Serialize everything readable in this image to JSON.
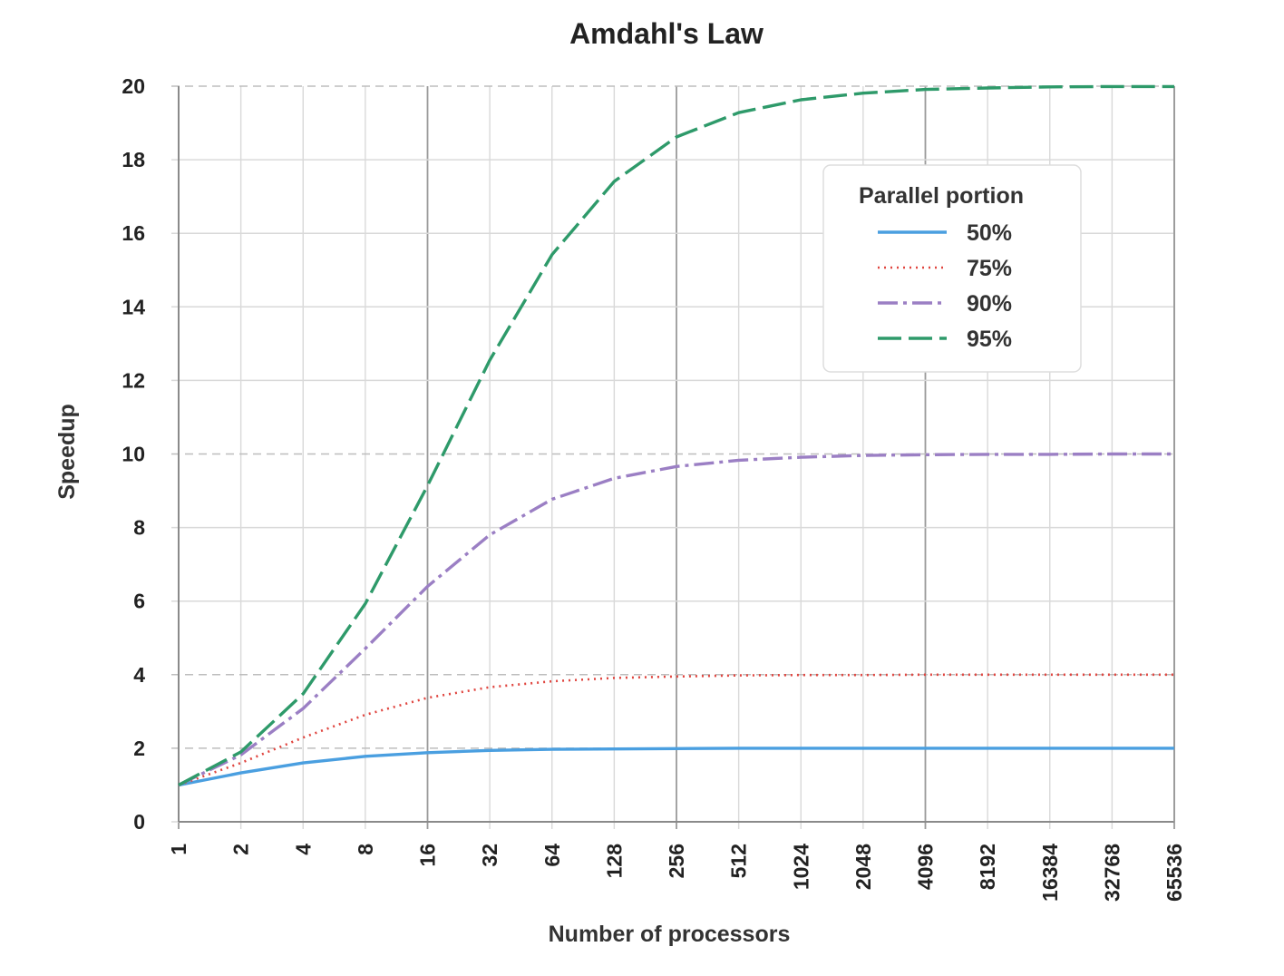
{
  "chart_data": {
    "type": "line",
    "title": "Amdahl's Law",
    "xlabel": "Number of processors",
    "ylabel": "Speedup",
    "x_scale": "log2",
    "x": [
      1,
      2,
      4,
      8,
      16,
      32,
      64,
      128,
      256,
      512,
      1024,
      2048,
      4096,
      8192,
      16384,
      32768,
      65536
    ],
    "x_tick_labels": [
      "1",
      "2",
      "4",
      "8",
      "16",
      "32",
      "64",
      "128",
      "256",
      "512",
      "1024",
      "2048",
      "4096",
      "8192",
      "16384",
      "32768",
      "65536"
    ],
    "ylim": [
      0,
      20
    ],
    "y_ticks": [
      0,
      2,
      4,
      6,
      8,
      10,
      12,
      14,
      16,
      18,
      20
    ],
    "grid": true,
    "legend": {
      "title": "Parallel portion",
      "position": "top-right"
    },
    "series": [
      {
        "name": "50%",
        "color": "#4a9fe0",
        "style": "solid",
        "values": [
          1,
          1.33,
          1.6,
          1.78,
          1.88,
          1.94,
          1.97,
          1.98,
          1.99,
          2.0,
          2.0,
          2.0,
          2.0,
          2.0,
          2.0,
          2.0,
          2.0
        ]
      },
      {
        "name": "75%",
        "color": "#e0453f",
        "style": "dotted",
        "values": [
          1,
          1.6,
          2.29,
          2.91,
          3.37,
          3.66,
          3.82,
          3.91,
          3.95,
          3.98,
          3.99,
          3.99,
          4.0,
          4.0,
          4.0,
          4.0,
          4.0
        ]
      },
      {
        "name": "90%",
        "color": "#9b7fc4",
        "style": "dashdot",
        "values": [
          1,
          1.82,
          3.08,
          4.71,
          6.4,
          7.8,
          8.77,
          9.34,
          9.66,
          9.83,
          9.91,
          9.96,
          9.98,
          9.99,
          9.99,
          10.0,
          10.0
        ]
      },
      {
        "name": "95%",
        "color": "#2e9a6a",
        "style": "dashed",
        "values": [
          1,
          1.9,
          3.48,
          5.93,
          9.14,
          12.55,
          15.42,
          17.41,
          18.62,
          19.28,
          19.63,
          19.81,
          19.91,
          19.95,
          19.98,
          19.99,
          19.99
        ]
      }
    ]
  }
}
